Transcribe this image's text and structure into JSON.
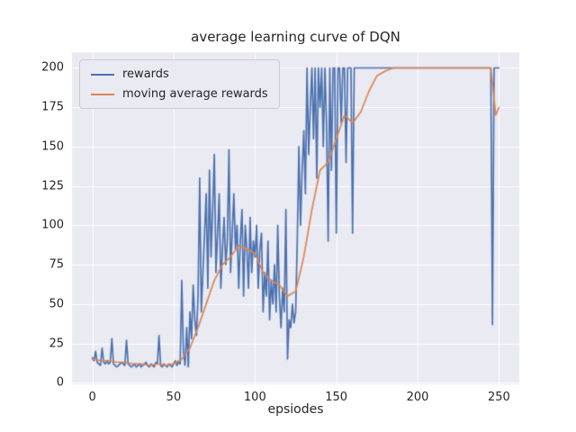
{
  "chart_data": {
    "type": "line",
    "title": "average learning curve of DQN",
    "xlabel": "epsiodes",
    "ylabel": "",
    "xlim": [
      -12.5,
      262.5
    ],
    "ylim": [
      -1,
      210
    ],
    "xticks": [
      0,
      50,
      100,
      150,
      200,
      250
    ],
    "yticks": [
      0,
      25,
      50,
      75,
      100,
      125,
      150,
      175,
      200
    ],
    "grid": true,
    "legend_position": "upper left",
    "colors": {
      "figure_bg": "#ffffff",
      "axes_bg": "#eaeaf2",
      "grid": "#ffffff",
      "text": "#262626",
      "legend_bg": "#eaeaf2",
      "legend_border": "#cccccc"
    },
    "series": [
      {
        "name": "rewards",
        "color": "#4c72b0",
        "x_mode": "index",
        "values": [
          16,
          14,
          20,
          13,
          12,
          11,
          22,
          13,
          12,
          14,
          12,
          13,
          28,
          12,
          11,
          10,
          11,
          12,
          13,
          12,
          11,
          27,
          12,
          11,
          10,
          11,
          12,
          10,
          11,
          12,
          10,
          11,
          12,
          13,
          11,
          10,
          12,
          11,
          10,
          13,
          12,
          30,
          11,
          10,
          12,
          11,
          10,
          12,
          11,
          10,
          12,
          14,
          11,
          13,
          12,
          65,
          20,
          11,
          35,
          10,
          45,
          28,
          62,
          40,
          30,
          55,
          130,
          45,
          70,
          95,
          120,
          60,
          135,
          80,
          110,
          145,
          70,
          95,
          120,
          60,
          85,
          105,
          75,
          90,
          148,
          70,
          95,
          120,
          85,
          100,
          60,
          90,
          110,
          55,
          100,
          85,
          60,
          105,
          70,
          90,
          80,
          100,
          60,
          85,
          95,
          45,
          70,
          55,
          90,
          40,
          65,
          50,
          75,
          45,
          100,
          55,
          35,
          60,
          45,
          110,
          15,
          40,
          35,
          50,
          38,
          45,
          90,
          150,
          100,
          135,
          160,
          120,
          200,
          145,
          175,
          200,
          155,
          200,
          130,
          200,
          175,
          200,
          150,
          200,
          165,
          90,
          200,
          135,
          200,
          200,
          95,
          200,
          200,
          165,
          200,
          200,
          140,
          200,
          200,
          200,
          95,
          200,
          200,
          200,
          200,
          200,
          200,
          200,
          200,
          200,
          200,
          200,
          200,
          200,
          200,
          200,
          200,
          200,
          200,
          200,
          200,
          200,
          200,
          200,
          200,
          200,
          200,
          200,
          200,
          200,
          200,
          200,
          200,
          200,
          200,
          200,
          200,
          200,
          200,
          200,
          200,
          200,
          200,
          200,
          200,
          200,
          200,
          200,
          200,
          200,
          200,
          200,
          200,
          200,
          200,
          200,
          200,
          200,
          200,
          200,
          200,
          200,
          200,
          200,
          200,
          200,
          200,
          200,
          200,
          200,
          200,
          200,
          200,
          200,
          200,
          200,
          200,
          200,
          200,
          200,
          200,
          200,
          200,
          200,
          200,
          200,
          37,
          200,
          200,
          200,
          200
        ]
      },
      {
        "name": "moving average rewards",
        "color": "#dd8452",
        "x": [
          0,
          5,
          10,
          15,
          20,
          25,
          30,
          35,
          40,
          45,
          50,
          55,
          60,
          65,
          70,
          75,
          80,
          85,
          90,
          95,
          100,
          105,
          110,
          115,
          120,
          125,
          130,
          135,
          140,
          145,
          150,
          155,
          160,
          165,
          170,
          175,
          180,
          185,
          190,
          200,
          210,
          220,
          230,
          240,
          245,
          248,
          250
        ],
        "y": [
          15,
          14,
          14,
          13,
          13,
          12,
          12,
          11,
          12,
          11,
          12,
          15,
          22,
          35,
          50,
          65,
          75,
          80,
          87,
          85,
          82,
          70,
          65,
          62,
          55,
          58,
          80,
          110,
          135,
          140,
          155,
          170,
          165,
          172,
          185,
          195,
          198,
          200,
          200,
          200,
          200,
          200,
          200,
          200,
          200,
          170,
          175
        ]
      }
    ]
  }
}
